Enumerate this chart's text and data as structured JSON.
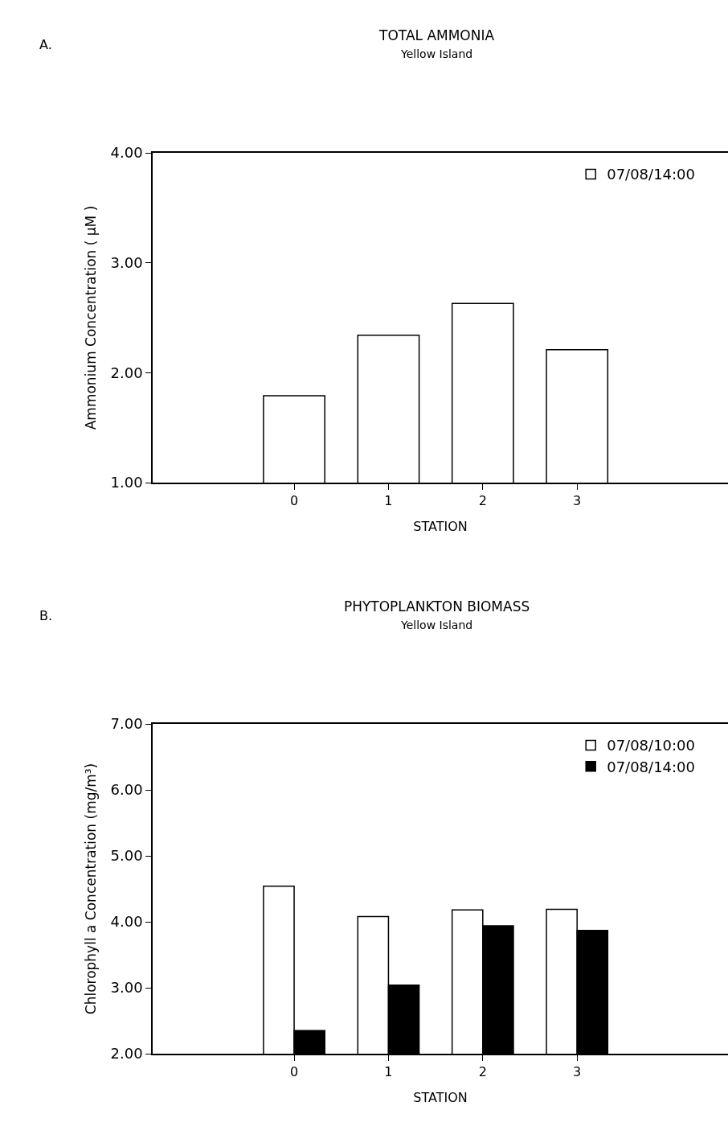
{
  "chart_data": [
    {
      "type": "bar",
      "title": "TOTAL AMMONIA",
      "subtitle": "Yellow Island",
      "xlabel": "STATION",
      "ylabel": "Ammonium Concentration ( μM )",
      "annotations": [
        "A."
      ],
      "categories": [
        "0",
        "1",
        "2",
        "3"
      ],
      "series": [
        {
          "name": "07/08/14:00",
          "color": "#ffffff",
          "values": [
            1.79,
            2.34,
            2.63,
            2.21
          ]
        }
      ],
      "ylim": [
        1,
        4
      ],
      "yticks": [
        {
          "value": 1,
          "label": "1.00"
        },
        {
          "value": 2,
          "label": "2.00"
        },
        {
          "value": 3,
          "label": "3.00"
        },
        {
          "value": 4,
          "label": "4.00"
        }
      ],
      "grid": false,
      "legend": "top right"
    },
    {
      "type": "bar",
      "title": "PHYTOPLANKTON BIOMASS",
      "subtitle": "Yellow Island",
      "xlabel": "STATION",
      "ylabel": "Chlorophyll a Concentration (mg/m³)",
      "annotations": [
        "B."
      ],
      "categories": [
        "0",
        "1",
        "2",
        "3"
      ],
      "series": [
        {
          "name": "07/08/10:00",
          "color": "#ffffff",
          "values": [
            4.54,
            4.08,
            4.18,
            4.19
          ]
        },
        {
          "name": "07/08/14:00",
          "color": "#000000",
          "values": [
            2.35,
            3.04,
            3.94,
            3.87
          ]
        }
      ],
      "ylim": [
        2,
        7
      ],
      "yticks": [
        {
          "value": 2,
          "label": "2.00"
        },
        {
          "value": 3,
          "label": "3.00"
        },
        {
          "value": 4,
          "label": "4.00"
        },
        {
          "value": 5,
          "label": "5.00"
        },
        {
          "value": 6,
          "label": "6.00"
        },
        {
          "value": 7,
          "label": "7.00"
        }
      ],
      "grid": false,
      "legend": "top right"
    }
  ]
}
